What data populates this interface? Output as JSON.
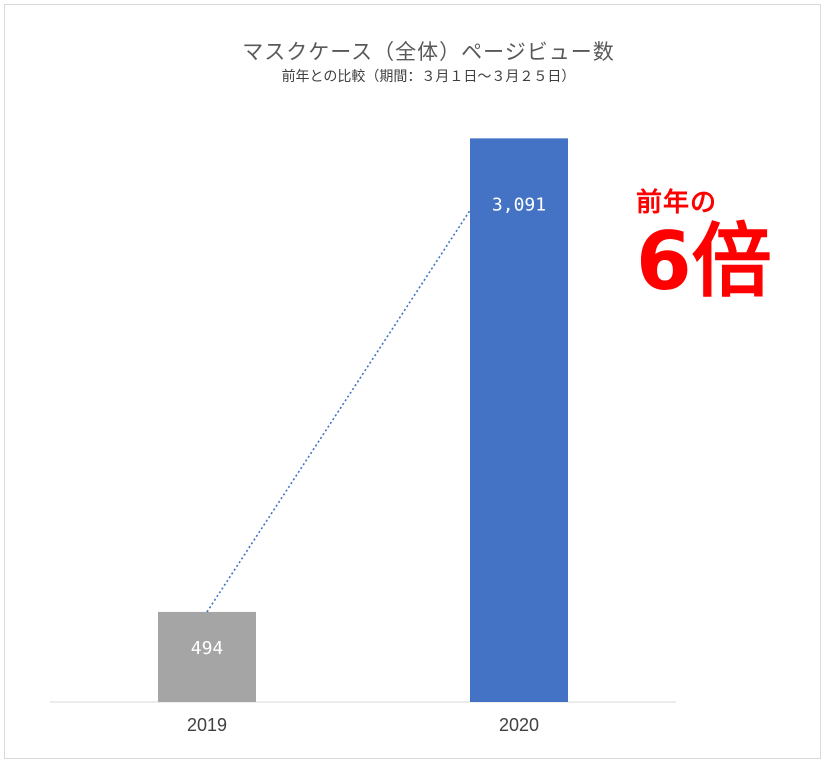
{
  "chart_data": {
    "type": "bar",
    "title": "マスクケース（全体）ページビュー数",
    "subtitle": "前年との比較（期間：３月１日～３月２５日）",
    "categories": [
      "2019",
      "2020"
    ],
    "values": [
      494,
      3091
    ],
    "value_labels": [
      "494",
      "3,091"
    ],
    "bar_colors": [
      "#a5a5a5",
      "#4472c4"
    ],
    "ylim": [
      0,
      3400
    ],
    "grid": false,
    "trend_line": {
      "style": "dotted",
      "color": "#4472c4",
      "from": "2019",
      "to": "2020"
    },
    "annotation": {
      "line1": "前年の",
      "line2": "6倍",
      "color": "#ff0000"
    }
  }
}
